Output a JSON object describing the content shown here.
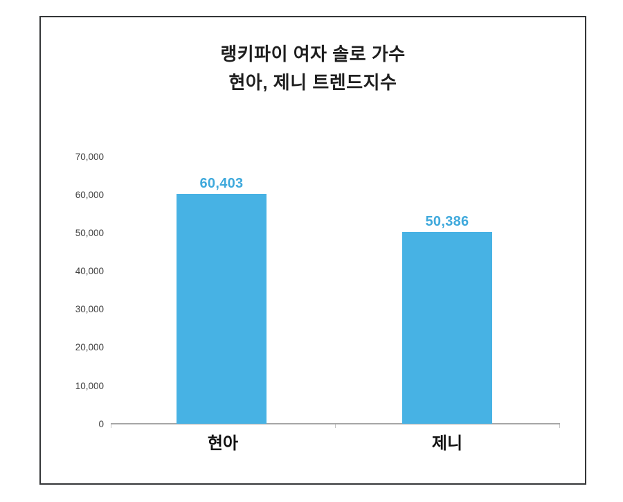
{
  "chart": {
    "title_line1": "랭키파이 여자 솔로 가수",
    "title_line2": "현아, 제니 트렌드지수"
  },
  "chart_data": {
    "type": "bar",
    "title": "랭키파이 여자 솔로 가수 현아, 제니 트렌드지수",
    "categories": [
      "현아",
      "제니"
    ],
    "values": [
      60403,
      50386
    ],
    "value_labels": [
      "60,403",
      "50,386"
    ],
    "series": [
      {
        "name": "트렌드지수",
        "values": [
          60403,
          50386
        ]
      }
    ],
    "xlabel": "",
    "ylabel": "",
    "ylim": [
      0,
      70000
    ],
    "ytick_interval": 10000,
    "ytick_labels": [
      "70,000",
      "60,000",
      "50,000",
      "40,000",
      "30,000",
      "20,000",
      "10,000",
      "0"
    ],
    "grid": false,
    "legend_position": "none",
    "bar_color": "#47b2e4",
    "value_label_color": "#3fa9dc",
    "axis_line_color": "#a6a6a6",
    "frame_border_color": "#333537"
  }
}
